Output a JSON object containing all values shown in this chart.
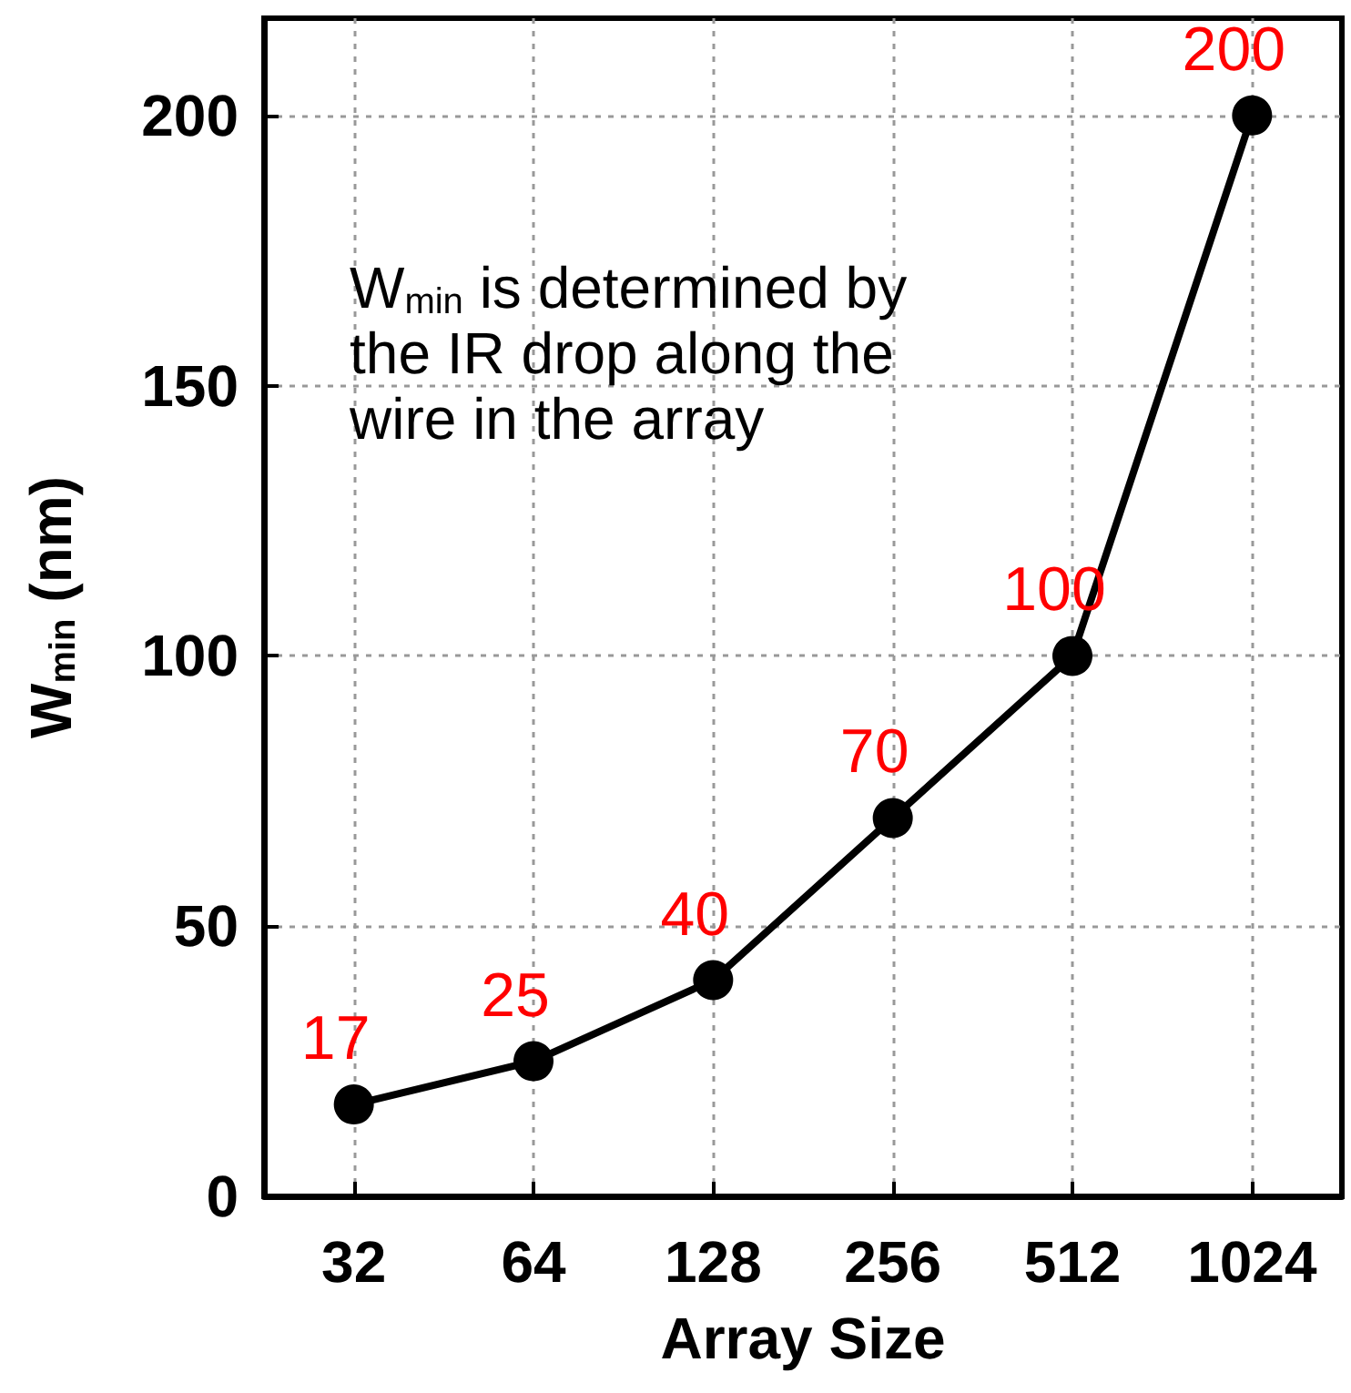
{
  "chart_data": {
    "type": "line",
    "xlabel": "Array Size",
    "ylabel": "W$_{min}$ (nm)",
    "categories": [
      "32",
      "64",
      "128",
      "256",
      "512",
      "1024"
    ],
    "series": [
      {
        "color": "#000000",
        "values": [
          17,
          25,
          40,
          70,
          100,
          200
        ]
      }
    ],
    "data_labels": true,
    "ylim": [
      0,
      218
    ],
    "yticks": [
      0,
      50,
      100,
      150,
      200
    ],
    "grid": true,
    "marker": "circle",
    "line_style": "solid",
    "annotations": [
      "W$_{min}$ is determined by the IR drop along the wire in the array"
    ]
  }
}
